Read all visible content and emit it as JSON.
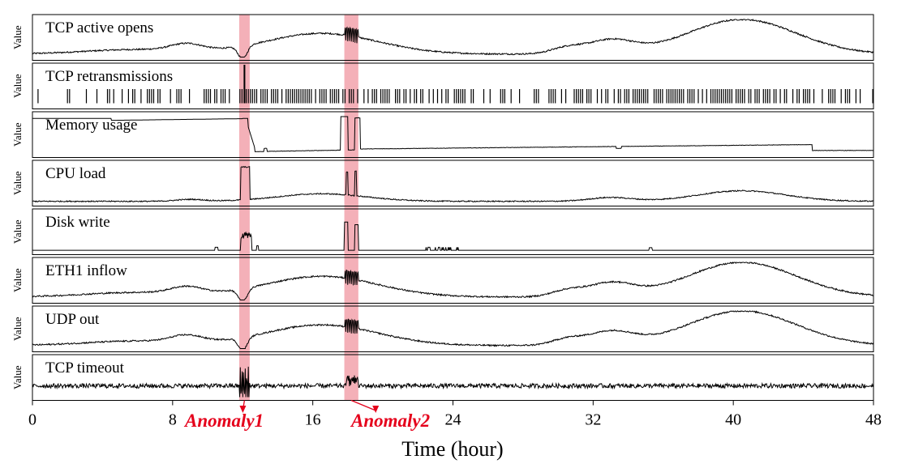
{
  "chart_data": {
    "type": "line",
    "xlabel": "Time (hour)",
    "ylabel": "Value",
    "xlim": [
      0,
      48
    ],
    "xticks": [
      0,
      8,
      16,
      24,
      32,
      40,
      48
    ],
    "series": [
      {
        "name": "TCP active opens",
        "shape": "daily",
        "anomalies": [
          1,
          2
        ]
      },
      {
        "name": "TCP retransmissions",
        "shape": "spikes",
        "anomalies": [
          1
        ]
      },
      {
        "name": "Memory usage",
        "shape": "memory",
        "anomalies": [
          1,
          2
        ]
      },
      {
        "name": "CPU load",
        "shape": "cpu",
        "anomalies": [
          1,
          2
        ]
      },
      {
        "name": "Disk write",
        "shape": "disk",
        "anomalies": [
          1,
          2
        ]
      },
      {
        "name": "ETH1 inflow",
        "shape": "daily",
        "anomalies": [
          1,
          2
        ]
      },
      {
        "name": "UDP out",
        "shape": "daily",
        "anomalies": [
          1,
          2
        ]
      },
      {
        "name": "TCP timeout",
        "shape": "noise",
        "anomalies": [
          1,
          2
        ]
      }
    ],
    "anomaly_regions": [
      {
        "label": "Anomaly1",
        "start": 11.8,
        "end": 12.4
      },
      {
        "label": "Anomaly2",
        "start": 17.8,
        "end": 18.6
      }
    ],
    "highlight_color": "#f4b0b8",
    "annotation_color": "#e5001b"
  }
}
